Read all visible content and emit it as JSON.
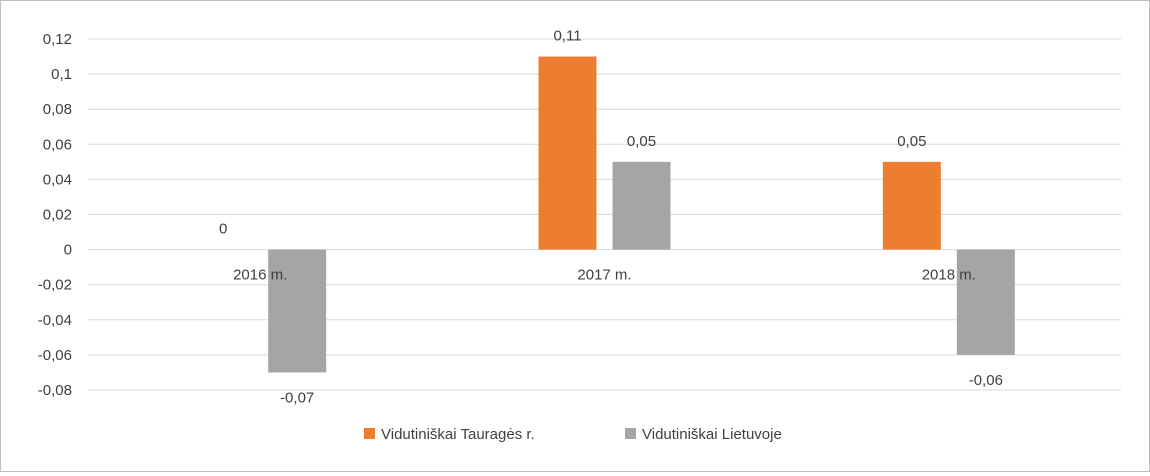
{
  "chart_data": {
    "type": "bar",
    "categories": [
      "2016 m.",
      "2017 m.",
      "2018 m."
    ],
    "series": [
      {
        "name": "Vidutiniškai Tauragės r.",
        "values": [
          0,
          0.11,
          0.05
        ],
        "color": "#ED7D31"
      },
      {
        "name": "Vidutiniškai Lietuvoje",
        "values": [
          -0.07,
          0.05,
          -0.06
        ],
        "color": "#A5A5A5"
      }
    ],
    "data_labels": [
      [
        "0",
        "0,11",
        "0,05"
      ],
      [
        "-0,07",
        "0,05",
        "-0,06"
      ]
    ],
    "y_ticks": [
      0.12,
      0.1,
      0.08,
      0.06,
      0.04,
      0.02,
      0,
      -0.02,
      -0.04,
      -0.06,
      -0.08
    ],
    "y_tick_labels": [
      "0,12",
      "0,1",
      "0,08",
      "0,06",
      "0,04",
      "0,02",
      "0",
      "-0,02",
      "-0,04",
      "-0,06",
      "-0,08"
    ],
    "ylim": [
      -0.08,
      0.12
    ],
    "grid": true,
    "legend_position": "bottom",
    "gridline_color": "#D9D9D9"
  }
}
